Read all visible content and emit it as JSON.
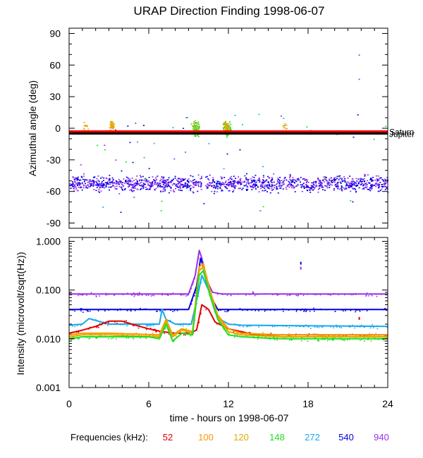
{
  "title": "URAP Direction Finding  1998-06-07",
  "colors": {
    "f52": "#e00000",
    "f100": "#f59a00",
    "f120": "#d8b000",
    "f148": "#22dd22",
    "f272": "#18a8ee",
    "f540": "#0000e6",
    "f940": "#9a30e8"
  },
  "chart_data": [
    {
      "type": "scatter",
      "name": "azimuth",
      "ylabel": "Azimuthal angle (deg)",
      "xlabel": "",
      "xlim": [
        0,
        24
      ],
      "ylim": [
        -95,
        95
      ],
      "ytick_values": [
        90,
        60,
        30,
        0,
        -30,
        -60,
        -90
      ],
      "ytick_labels": [
        "90",
        "60",
        "30",
        "0",
        "-30",
        "-60",
        "-90"
      ],
      "reference_lines": [
        {
          "label": "Saturn",
          "value": -3,
          "color": "#e00000"
        },
        {
          "label": "Jupiter",
          "value": -5,
          "color": "#000000"
        }
      ],
      "series": [
        {
          "name": "540/940 kHz cluster",
          "color_key": "f540",
          "x_range": [
            0,
            24
          ],
          "y_center": -52,
          "y_spread": 8
        },
        {
          "name": "148 kHz bursts",
          "color_key": "f148",
          "x_centers": [
            9.5,
            11.8
          ],
          "y_center": 0,
          "y_spread": 8
        },
        {
          "name": "100/120 kHz bursts",
          "color_key": "f100",
          "x_centers": [
            1.2,
            3.2,
            9.5,
            11.8,
            16.2
          ],
          "y_center": 2,
          "y_spread": 5
        }
      ],
      "annotations": [
        {
          "x": 21.8,
          "y": 70,
          "color_key": "f940"
        },
        {
          "x": 21.8,
          "y": 47,
          "color_key": "f940"
        }
      ]
    },
    {
      "type": "line",
      "name": "intensity",
      "ylabel": "Intensity (microvolt/sqrt(Hz))",
      "xlabel": "time - hours on 1998-06-07",
      "xlim": [
        0,
        24
      ],
      "yscale": "log",
      "ylim": [
        0.001,
        1.2
      ],
      "ytick_values": [
        1.0,
        0.1,
        0.01,
        0.001
      ],
      "ytick_labels": [
        "1.000",
        "0.100",
        "0.010",
        "0.001"
      ],
      "xtick_values": [
        0,
        6,
        12,
        18,
        24
      ],
      "xtick_labels": [
        "0",
        "6",
        "12",
        "18",
        "24"
      ],
      "series": [
        {
          "name": "940",
          "color_key": "f940",
          "x": [
            0,
            9.0,
            9.5,
            9.8,
            10.0,
            10.4,
            10.8,
            11.5,
            24
          ],
          "y": [
            0.083,
            0.083,
            0.2,
            0.65,
            0.45,
            0.15,
            0.09,
            0.083,
            0.083
          ]
        },
        {
          "name": "540",
          "color_key": "f540",
          "x": [
            0,
            9.0,
            9.6,
            9.9,
            10.2,
            10.6,
            11.2,
            24
          ],
          "y": [
            0.04,
            0.04,
            0.12,
            0.45,
            0.25,
            0.08,
            0.04,
            0.04
          ]
        },
        {
          "name": "272",
          "color_key": "f272",
          "x": [
            0,
            1.0,
            1.5,
            3.0,
            6.8,
            7.0,
            7.3,
            8.0,
            9.2,
            9.7,
            10.0,
            10.5,
            11.0,
            11.5,
            12.0,
            13.0,
            24
          ],
          "y": [
            0.019,
            0.02,
            0.026,
            0.02,
            0.02,
            0.04,
            0.025,
            0.02,
            0.02,
            0.08,
            0.2,
            0.1,
            0.035,
            0.024,
            0.02,
            0.019,
            0.018
          ]
        },
        {
          "name": "52",
          "color_key": "f52",
          "x": [
            0,
            1.0,
            2.0,
            3.0,
            4.0,
            5.0,
            6.0,
            7.0,
            8.0,
            9.0,
            9.6,
            10.0,
            10.5,
            11.0,
            12.0,
            13.0,
            14.0,
            16.0,
            24
          ],
          "y": [
            0.013,
            0.015,
            0.018,
            0.023,
            0.023,
            0.019,
            0.016,
            0.014,
            0.013,
            0.013,
            0.015,
            0.05,
            0.04,
            0.022,
            0.016,
            0.014,
            0.012,
            0.012,
            0.012
          ]
        },
        {
          "name": "100",
          "color_key": "f100",
          "x": [
            0,
            1.0,
            3.0,
            6.8,
            7.3,
            7.8,
            8.5,
            9.3,
            9.8,
            10.1,
            10.6,
            11.2,
            12.0,
            13.0,
            16.0,
            24
          ],
          "y": [
            0.012,
            0.013,
            0.013,
            0.012,
            0.025,
            0.012,
            0.016,
            0.014,
            0.3,
            0.35,
            0.1,
            0.03,
            0.016,
            0.013,
            0.012,
            0.012
          ]
        },
        {
          "name": "120",
          "color_key": "f120",
          "x": [
            0,
            1.0,
            3.0,
            6.8,
            7.3,
            7.8,
            8.5,
            9.3,
            9.8,
            10.1,
            10.6,
            11.2,
            12.0,
            13.0,
            16.0,
            24
          ],
          "y": [
            0.011,
            0.012,
            0.012,
            0.011,
            0.022,
            0.011,
            0.015,
            0.013,
            0.25,
            0.3,
            0.09,
            0.027,
            0.014,
            0.012,
            0.011,
            0.011
          ]
        },
        {
          "name": "148",
          "color_key": "f148",
          "x": [
            0,
            1.0,
            3.0,
            6.0,
            6.8,
            7.3,
            7.8,
            8.5,
            9.3,
            9.8,
            10.1,
            10.6,
            11.2,
            12.0,
            13.0,
            16.0,
            24
          ],
          "y": [
            0.01,
            0.011,
            0.011,
            0.011,
            0.01,
            0.02,
            0.009,
            0.013,
            0.012,
            0.2,
            0.25,
            0.08,
            0.025,
            0.012,
            0.011,
            0.01,
            0.01
          ]
        }
      ],
      "annotations": [
        {
          "x": 17.4,
          "y": 0.3,
          "color_key": "f940"
        },
        {
          "x": 17.4,
          "y": 0.38,
          "color_key": "f540"
        },
        {
          "x": 21.8,
          "y": 0.028,
          "color_key": "f52"
        },
        {
          "x": 13.8,
          "y": 0.094,
          "color_key": "f940"
        }
      ]
    }
  ],
  "legend": {
    "title": "Frequencies (kHz):",
    "items": [
      {
        "label": "52",
        "color_key": "f52"
      },
      {
        "label": "100",
        "color_key": "f100"
      },
      {
        "label": "120",
        "color_key": "f120"
      },
      {
        "label": "148",
        "color_key": "f148"
      },
      {
        "label": "272",
        "color_key": "f272"
      },
      {
        "label": "540",
        "color_key": "f540"
      },
      {
        "label": "940",
        "color_key": "f940"
      }
    ]
  }
}
